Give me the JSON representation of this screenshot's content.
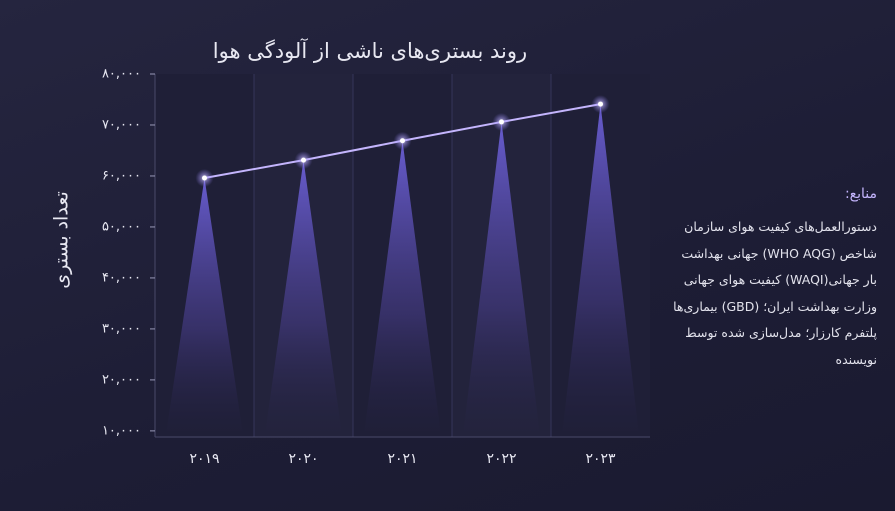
{
  "chart_data": {
    "type": "line",
    "title": "روند بستری‌های ناشی از آلودگی هوا",
    "y_label": "تعداد بستری",
    "categories": [
      "۲۰۱۹",
      "۲۰۲۰",
      "۲۰۲۱",
      "۲۰۲۲",
      "۲۰۲۳"
    ],
    "series": [
      {
        "name": "تعداد بستری",
        "color": "#c4b5fd",
        "values": [
          59600,
          63100,
          66900,
          70600,
          74100
        ]
      }
    ],
    "ylim": [
      8800,
      80000
    ],
    "yticks": [
      {
        "value": 10000,
        "label": "۱۰,۰۰۰"
      },
      {
        "value": 20000,
        "label": "۲۰,۰۰۰"
      },
      {
        "value": 30000,
        "label": "۳۰,۰۰۰"
      },
      {
        "value": 40000,
        "label": "۴۰,۰۰۰"
      },
      {
        "value": 50000,
        "label": "۵۰,۰۰۰"
      },
      {
        "value": 60000,
        "label": "۶۰,۰۰۰"
      },
      {
        "value": 70000,
        "label": "۷۰,۰۰۰"
      },
      {
        "value": 80000,
        "label": "۸۰,۰۰۰"
      }
    ],
    "sources": {
      "title": "منابع:",
      "lines": [
        "دستورالعمل‌های کیفیت هوای سازمان",
        "شاخص (WHO AQG) جهانی بهداشت",
        "بار جهانی(WAQI) کیفیت هوای جهانی",
        "وزارت بهداشت ایران؛ (GBD) بیماری‌ها",
        "پلتفرم کارزار؛ مدل‌سازی شده توسط",
        "نویسنده"
      ]
    }
  }
}
